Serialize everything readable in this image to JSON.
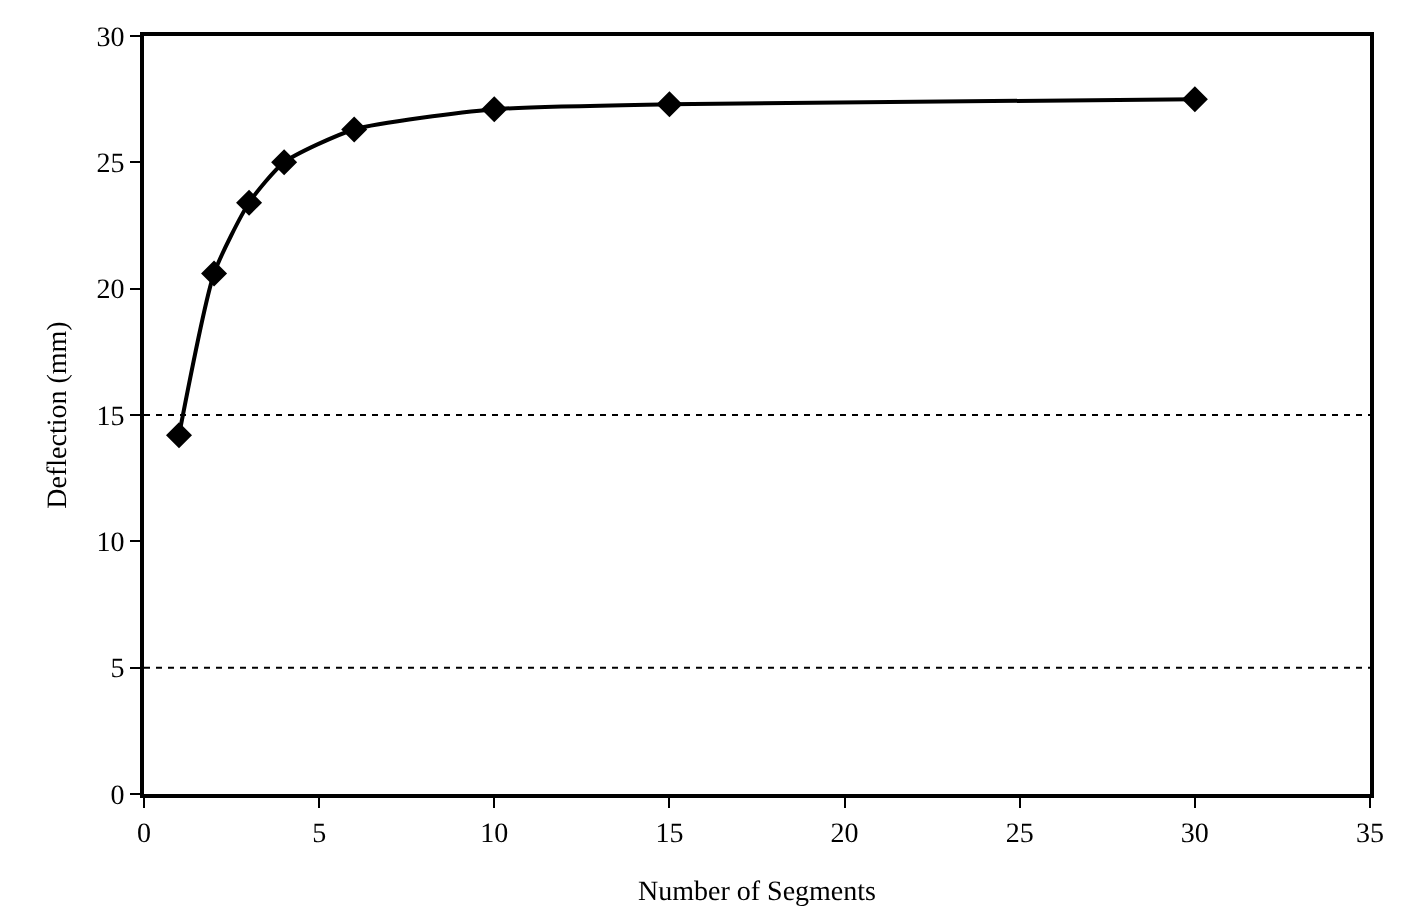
{
  "chart_data": {
    "type": "line",
    "xlabel": "Number of Segments",
    "ylabel": "Deflection (mm)",
    "x": [
      1,
      2,
      3,
      4,
      6,
      10,
      15,
      30
    ],
    "series": [
      {
        "color": "#000000",
        "values": [
          14.2,
          20.6,
          23.4,
          25.0,
          26.3,
          27.1,
          27.3,
          27.5
        ]
      }
    ],
    "xlim": [
      0,
      35
    ],
    "xticks": [
      0,
      5,
      10,
      15,
      20,
      25,
      30,
      35
    ],
    "ylim": [
      0,
      30
    ],
    "yticks": [
      0,
      5,
      10,
      15,
      20,
      25,
      30
    ],
    "grid": false,
    "marker": "diamond",
    "line_style": "solid",
    "ref_lines": [
      {
        "axis": "y",
        "value": 5,
        "line_style": "dotted",
        "color": "#000000"
      },
      {
        "axis": "y",
        "value": 15,
        "line_style": "dotted",
        "color": "#000000"
      }
    ]
  }
}
